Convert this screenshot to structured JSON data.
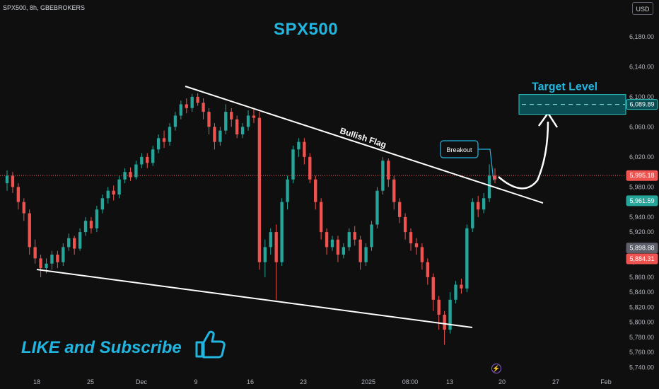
{
  "header": {
    "symbol_line": "SPX500, 8h, GBEBROKERS",
    "currency": "USD"
  },
  "colors": {
    "background": "#0f0f0f",
    "up": "#26a69a",
    "down": "#ef5350",
    "accent": "#22b5e0",
    "target_box": "#0b4f55",
    "target_border": "#2ec4c4"
  },
  "chart_data": {
    "type": "candlestick",
    "title": "SPX500",
    "ylim": [
      5730,
      6210
    ],
    "y_ticks": [
      6180,
      6140,
      6100,
      6060,
      6020,
      5980,
      5940,
      5920,
      5880,
      5860,
      5840,
      5820,
      5800,
      5780,
      5760,
      5740
    ],
    "y_tick_labels": [
      "6,180.00",
      "6,140.00",
      "6,100.00",
      "6,060.00",
      "6,020.00",
      "5,980.00",
      "5,940.00",
      "5,920.00",
      "5,880.00",
      "5,860.00",
      "5,840.00",
      "5,820.00",
      "5,800.00",
      "5,780.00",
      "5,760.00",
      "5,740.00"
    ],
    "x_ticks": [
      "18",
      "25",
      "Dec",
      "9",
      "16",
      "23",
      "2025",
      "08:00",
      "13",
      "20",
      "27",
      "Feb"
    ],
    "price_labels": [
      {
        "value": 6089.89,
        "text": "6,089.89",
        "color": "#0b4f55"
      },
      {
        "value": 5995.18,
        "text": "5,995.18",
        "color": "#ef5350"
      },
      {
        "value": 5961.59,
        "text": "5,961.59",
        "color": "#26a69a"
      },
      {
        "value": 5898.88,
        "text": "5,898.88",
        "color": "#5d606b"
      },
      {
        "value": 5884.31,
        "text": "5,884.31",
        "color": "#ef5350"
      }
    ],
    "current_price": 5995.18,
    "annotations": {
      "bullish_flag": "Bullish Flag",
      "breakout": "Breakout",
      "target_level": "Target Level",
      "target_value": 6089.89
    },
    "upper_trendline": [
      [
        6104,
        5950
      ]
    ],
    "lower_trendline": [
      [
        5866,
        5789
      ]
    ],
    "candles": [
      [
        5985,
        5995,
        5975,
        6002
      ],
      [
        5995,
        5980,
        5972,
        6000
      ],
      [
        5980,
        5960,
        5950,
        5985
      ],
      [
        5960,
        5945,
        5935,
        5965
      ],
      [
        5945,
        5900,
        5890,
        5950
      ],
      [
        5900,
        5885,
        5878,
        5910
      ],
      [
        5885,
        5872,
        5860,
        5890
      ],
      [
        5872,
        5878,
        5865,
        5885
      ],
      [
        5878,
        5890,
        5870,
        5895
      ],
      [
        5890,
        5880,
        5872,
        5895
      ],
      [
        5880,
        5900,
        5875,
        5905
      ],
      [
        5900,
        5912,
        5895,
        5918
      ],
      [
        5912,
        5898,
        5890,
        5915
      ],
      [
        5898,
        5920,
        5895,
        5925
      ],
      [
        5920,
        5935,
        5915,
        5940
      ],
      [
        5935,
        5925,
        5918,
        5940
      ],
      [
        5925,
        5950,
        5920,
        5955
      ],
      [
        5950,
        5965,
        5945,
        5970
      ],
      [
        5965,
        5975,
        5958,
        5980
      ],
      [
        5975,
        5970,
        5962,
        5982
      ],
      [
        5970,
        5990,
        5965,
        5995
      ],
      [
        5990,
        6000,
        5985,
        6005
      ],
      [
        6000,
        5993,
        5988,
        6006
      ],
      [
        5993,
        6010,
        5990,
        6015
      ],
      [
        6010,
        6020,
        6005,
        6025
      ],
      [
        6020,
        6012,
        6005,
        6025
      ],
      [
        6012,
        6030,
        6008,
        6035
      ],
      [
        6030,
        6045,
        6025,
        6050
      ],
      [
        6045,
        6040,
        6032,
        6055
      ],
      [
        6040,
        6060,
        6035,
        6065
      ],
      [
        6060,
        6075,
        6055,
        6080
      ],
      [
        6075,
        6090,
        6070,
        6095
      ],
      [
        6090,
        6085,
        6078,
        6098
      ],
      [
        6085,
        6100,
        6080,
        6104
      ],
      [
        6100,
        6092,
        6088,
        6105
      ],
      [
        6092,
        6080,
        6070,
        6098
      ],
      [
        6080,
        6060,
        6050,
        6085
      ],
      [
        6060,
        6040,
        6030,
        6065
      ],
      [
        6040,
        6055,
        6035,
        6060
      ],
      [
        6055,
        6080,
        6050,
        6090
      ],
      [
        6080,
        6070,
        6060,
        6085
      ],
      [
        6070,
        6050,
        6045,
        6075
      ],
      [
        6050,
        6060,
        6045,
        6065
      ],
      [
        6060,
        6075,
        6055,
        6082
      ],
      [
        6075,
        6072,
        6065,
        6085
      ],
      [
        6072,
        5880,
        5870,
        6080
      ],
      [
        5880,
        5900,
        5860,
        5910
      ],
      [
        5900,
        5920,
        5890,
        5925
      ],
      [
        5920,
        5880,
        5830,
        5930
      ],
      [
        5880,
        5960,
        5875,
        5965
      ],
      [
        5960,
        5990,
        5950,
        5995
      ],
      [
        5990,
        6030,
        5985,
        6035
      ],
      [
        6030,
        6040,
        6020,
        6045
      ],
      [
        6040,
        6020,
        6010,
        6045
      ],
      [
        6020,
        5990,
        5985,
        6025
      ],
      [
        5990,
        5960,
        5950,
        5995
      ],
      [
        5960,
        5920,
        5910,
        5965
      ],
      [
        5920,
        5900,
        5890,
        5925
      ],
      [
        5900,
        5910,
        5895,
        5915
      ],
      [
        5910,
        5890,
        5880,
        5915
      ],
      [
        5890,
        5900,
        5885,
        5905
      ],
      [
        5900,
        5920,
        5895,
        5925
      ],
      [
        5920,
        5910,
        5902,
        5928
      ],
      [
        5910,
        5880,
        5870,
        5915
      ],
      [
        5880,
        5900,
        5875,
        5905
      ],
      [
        5900,
        5930,
        5895,
        5935
      ],
      [
        5930,
        5975,
        5925,
        5980
      ],
      [
        5975,
        6015,
        5970,
        6020
      ],
      [
        6015,
        5990,
        5980,
        6018
      ],
      [
        5990,
        5960,
        5950,
        5995
      ],
      [
        5960,
        5940,
        5932,
        5965
      ],
      [
        5940,
        5920,
        5910,
        5945
      ],
      [
        5920,
        5905,
        5895,
        5925
      ],
      [
        5905,
        5900,
        5890,
        5912
      ],
      [
        5900,
        5880,
        5870,
        5905
      ],
      [
        5880,
        5860,
        5850,
        5885
      ],
      [
        5860,
        5830,
        5815,
        5865
      ],
      [
        5830,
        5810,
        5790,
        5835
      ],
      [
        5810,
        5790,
        5770,
        5815
      ],
      [
        5790,
        5830,
        5785,
        5840
      ],
      [
        5830,
        5850,
        5825,
        5855
      ],
      [
        5850,
        5845,
        5838,
        5858
      ],
      [
        5845,
        5925,
        5840,
        5930
      ],
      [
        5925,
        5960,
        5920,
        5965
      ],
      [
        5960,
        5950,
        5940,
        5968
      ],
      [
        5950,
        5965,
        5945,
        5972
      ],
      [
        5965,
        5995,
        5960,
        6010
      ],
      [
        5995,
        5990,
        5985,
        6005
      ]
    ]
  },
  "footer": {
    "like_text": "LIKE and Subscribe"
  }
}
